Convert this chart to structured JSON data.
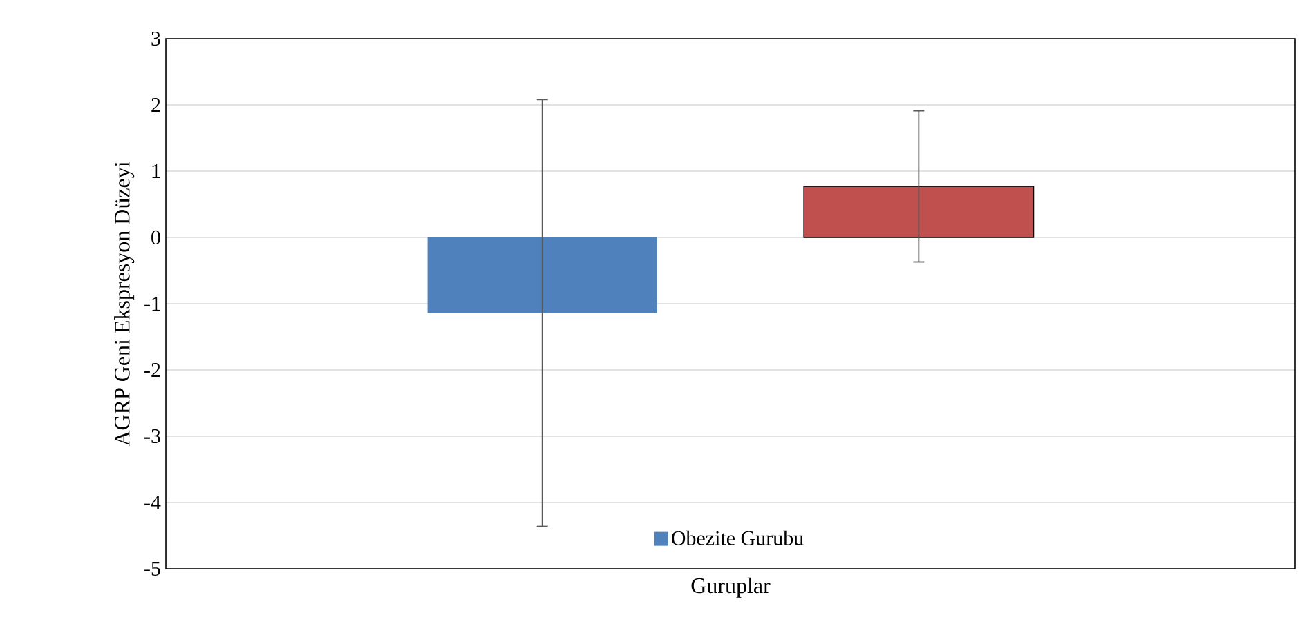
{
  "chart_data": {
    "type": "bar",
    "xlabel": "Guruplar",
    "ylabel": "AGRP Geni Ekspresyon Düzeyi",
    "categories": [
      null,
      null
    ],
    "series": [
      {
        "name": "Obezite Gurubu",
        "color": "#4f81bd",
        "values": [
          -1.14,
          null
        ],
        "errors": [
          3.22,
          null
        ]
      },
      {
        "color": "#c0504d",
        "values": [
          null,
          0.77
        ],
        "errors": [
          null,
          1.14
        ]
      }
    ],
    "ylim": [
      -5,
      3
    ],
    "yticks": [
      -5,
      -4,
      -3,
      -2,
      -1,
      0,
      1,
      2,
      3
    ],
    "grid": "y",
    "legend": "bottom"
  }
}
